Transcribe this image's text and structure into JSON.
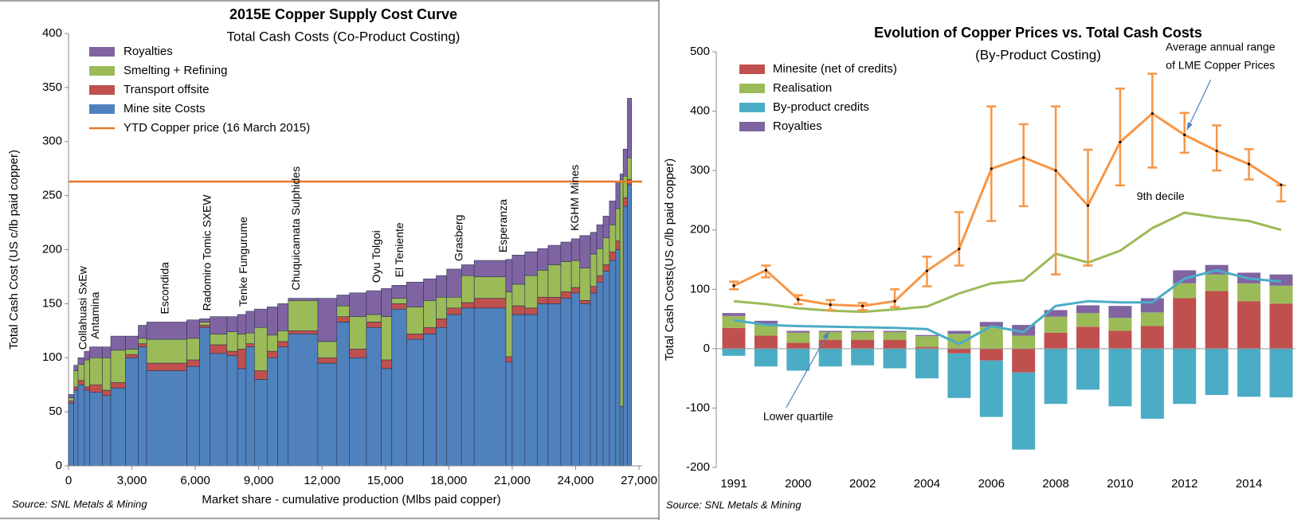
{
  "chart_data": [
    {
      "type": "cost_curve",
      "title": "2015E Copper Supply Cost Curve",
      "subtitle": "Total Cash Costs (Co-Product Costing)",
      "x_label": "Market share - cumulative production (Mlbs paid copper)",
      "y_label": "Total Cash Cost (US c/lb paid copper)",
      "source": "Source: SNL Metals & Mining",
      "production": [
        250,
        200,
        300,
        250,
        600,
        400,
        700,
        600,
        400,
        1900,
        600,
        500,
        800,
        500,
        400,
        400,
        600,
        500,
        500,
        1400,
        900,
        600,
        800,
        700,
        500,
        700,
        800,
        600,
        500,
        700,
        600,
        1500,
        300,
        600,
        600,
        500,
        600,
        500,
        400,
        500,
        300,
        300,
        300,
        300,
        200,
        150,
        200,
        200
      ],
      "series": [
        {
          "name": "Royalties",
          "color": "#8064a2",
          "values": [
            3,
            5,
            6,
            8,
            10,
            10,
            13,
            12,
            12,
            16,
            17,
            3,
            16,
            14,
            18,
            20,
            17,
            26,
            25,
            2,
            40,
            10,
            22,
            22,
            26,
            12,
            23,
            20,
            20,
            26,
            10,
            15,
            30,
            27,
            22,
            20,
            18,
            18,
            20,
            30,
            20,
            22,
            20,
            22,
            25,
            5,
            25,
            55
          ]
        },
        {
          "name": "Smelting + Refining",
          "color": "#9bbb59",
          "values": [
            3,
            15,
            15,
            25,
            25,
            30,
            30,
            5,
            5,
            22,
            20,
            3,
            10,
            18,
            14,
            10,
            40,
            15,
            10,
            28,
            15,
            10,
            30,
            7,
            40,
            5,
            25,
            25,
            20,
            10,
            25,
            20,
            60,
            20,
            30,
            25,
            30,
            28,
            25,
            30,
            30,
            25,
            25,
            25,
            30,
            210,
            20,
            20
          ]
        },
        {
          "name": "Transport offsite",
          "color": "#c0504d",
          "values": [
            2,
            3,
            4,
            3,
            7,
            5,
            5,
            3,
            3,
            7,
            6,
            2,
            8,
            4,
            18,
            3,
            8,
            6,
            5,
            3,
            5,
            5,
            8,
            5,
            8,
            5,
            5,
            6,
            8,
            6,
            5,
            9,
            5,
            8,
            6,
            6,
            6,
            6,
            5,
            3,
            6,
            6,
            6,
            8,
            8,
            0,
            8,
            5
          ]
        },
        {
          "name": "Mine site Costs",
          "color": "#4f81bd",
          "values": [
            58,
            70,
            75,
            70,
            68,
            65,
            72,
            100,
            110,
            88,
            92,
            128,
            104,
            102,
            90,
            110,
            80,
            100,
            110,
            122,
            95,
            133,
            100,
            128,
            90,
            145,
            117,
            122,
            128,
            140,
            146,
            146,
            96,
            140,
            140,
            150,
            150,
            155,
            160,
            150,
            160,
            170,
            180,
            190,
            200,
            55,
            240,
            260
          ]
        }
      ],
      "price_line": {
        "name": "YTD Copper price (16 March 2015)",
        "value": 263,
        "color": "#e8782a"
      },
      "annotations": [
        {
          "text": "Collahuasi SxEw",
          "x": 700
        },
        {
          "text": "Antamina",
          "x": 1300
        },
        {
          "text": "Escondida",
          "x": 4600
        },
        {
          "text": "Radomiro Tomic SXEW",
          "x": 6600
        },
        {
          "text": "Tenke Fungurume",
          "x": 8300
        },
        {
          "text": "Chuquicamata Sulphides",
          "x": 10800
        },
        {
          "text": "Oyu Tolgoi",
          "x": 14600
        },
        {
          "text": "El Teniente",
          "x": 15700
        },
        {
          "text": "Grasberg",
          "x": 18500
        },
        {
          "text": "Esperanza",
          "x": 20600
        },
        {
          "text": "KGHM Mines",
          "x": 24000
        }
      ],
      "xlim": [
        0,
        27150
      ],
      "xticks": [
        0,
        {
          "value": 3000,
          "label": "3,000"
        },
        {
          "value": 6000,
          "label": "6,000"
        },
        {
          "value": 9000,
          "label": "9,000"
        },
        {
          "value": 12000,
          "label": "12,000"
        },
        {
          "value": 15000,
          "label": "15,000"
        },
        {
          "value": 18000,
          "label": "18,000"
        },
        {
          "value": 21000,
          "label": "21,000"
        },
        {
          "value": 24000,
          "label": "24,000"
        },
        {
          "value": 27000,
          "label": "27,000"
        }
      ],
      "ylim": [
        0,
        400
      ],
      "yticks": [
        0,
        50,
        100,
        150,
        200,
        250,
        300,
        350,
        400
      ]
    },
    {
      "type": "bar_line",
      "title": "Evolution of Copper Prices vs. Total Cash Costs",
      "subtitle": "(By-Product Costing)",
      "y_label": "Total Cash Costs(US c/lb paid copper)",
      "source": "Source: SNL Metals & Mining",
      "categories": [
        "1991",
        null,
        "2000",
        null,
        "2002",
        null,
        "2004",
        null,
        "2006",
        null,
        "2008",
        null,
        "2010",
        null,
        "2012",
        null,
        "2014",
        null
      ],
      "series": [
        {
          "name": "Minesite (net of credits)",
          "color": "#c0504d",
          "values": [
            35,
            22,
            10,
            15,
            15,
            15,
            3,
            -8,
            -20,
            -40,
            27,
            37,
            30,
            38,
            85,
            97,
            80,
            76
          ]
        },
        {
          "name": "Realisation",
          "color": "#9bbb59",
          "values": [
            20,
            20,
            17,
            13,
            13,
            13,
            18,
            25,
            37,
            22,
            27,
            23,
            22,
            23,
            25,
            28,
            30,
            30
          ]
        },
        {
          "name": "By-product credits",
          "color": "#4bacc6",
          "values": [
            -12,
            -30,
            -37,
            -30,
            -28,
            -33,
            -50,
            -75,
            -95,
            -130,
            -93,
            -69,
            -97,
            -118,
            -93,
            -78,
            -81,
            -82
          ]
        },
        {
          "name": "Royalties",
          "color": "#8064a2",
          "values": [
            5,
            5,
            3,
            2,
            2,
            2,
            2,
            5,
            8,
            18,
            11,
            13,
            20,
            24,
            22,
            16,
            18,
            19
          ]
        }
      ],
      "lines": [
        {
          "label": [
            "9th decile"
          ],
          "color": "#9bbb59",
          "values": [
            80,
            75,
            68,
            64,
            62,
            66,
            71,
            93,
            110,
            115,
            160,
            145,
            165,
            203,
            229,
            221,
            215,
            200
          ]
        },
        {
          "label": [
            "Lower quartile"
          ],
          "color": "#4bacc6",
          "values": [
            48,
            40,
            38,
            37,
            36,
            35,
            33,
            8,
            38,
            28,
            72,
            80,
            78,
            78,
            118,
            132,
            118,
            113
          ]
        },
        {
          "label": [
            "Average annual range",
            "of LME Copper Prices"
          ],
          "color": "#f79646",
          "values": [
            106,
            132,
            83,
            74,
            72,
            80,
            131,
            168,
            303,
            322,
            300,
            241,
            348,
            396,
            360,
            333,
            311,
            276
          ],
          "low": [
            100,
            120,
            75,
            65,
            65,
            70,
            105,
            140,
            215,
            240,
            125,
            140,
            275,
            305,
            330,
            300,
            285,
            248
          ],
          "high": [
            113,
            140,
            90,
            82,
            77,
            100,
            155,
            230,
            408,
            378,
            408,
            335,
            438,
            463,
            397,
            376,
            336,
            275
          ]
        }
      ],
      "ylim": [
        -200,
        500
      ],
      "yticks": [
        -200,
        -100,
        0,
        100,
        200,
        300,
        400,
        500
      ]
    }
  ]
}
